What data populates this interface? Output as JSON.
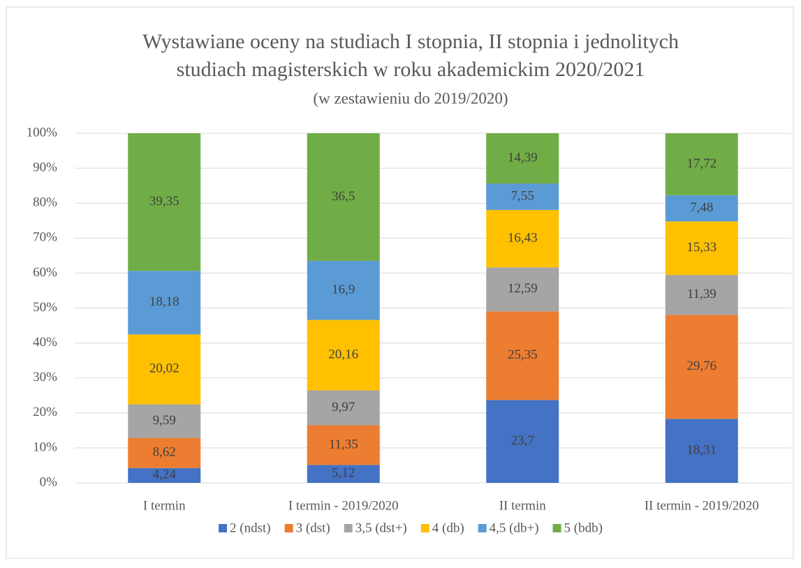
{
  "chart_data": {
    "type": "stacked_bar",
    "title": [
      "Wystawiane oceny na studiach I stopnia, II stopnia i jednolitych",
      "studiach magisterskich w roku akademickim 2020/2021"
    ],
    "subtitle": "(w zestawieniu do 2019/2020)",
    "categories": [
      "I termin",
      "I termin - 2019/2020",
      "II termin",
      "II termin - 2019/2020"
    ],
    "series": [
      {
        "name": "2 (ndst)",
        "color": "#4472c4",
        "values": [
          4.24,
          5.12,
          23.7,
          18.31
        ],
        "value_labels": [
          "4,24",
          "5,12",
          "23,7",
          "18,31"
        ]
      },
      {
        "name": "3 (dst)",
        "color": "#ed7d31",
        "values": [
          8.62,
          11.35,
          25.35,
          29.76
        ],
        "value_labels": [
          "8,62",
          "11,35",
          "25,35",
          "29,76"
        ]
      },
      {
        "name": "3,5 (dst+)",
        "color": "#a5a5a5",
        "values": [
          9.59,
          9.97,
          12.59,
          11.39
        ],
        "value_labels": [
          "9,59",
          "9,97",
          "12,59",
          "11,39"
        ]
      },
      {
        "name": "4 (db)",
        "color": "#ffc000",
        "values": [
          20.02,
          20.16,
          16.43,
          15.33
        ],
        "value_labels": [
          "20,02",
          "20,16",
          "16,43",
          "15,33"
        ]
      },
      {
        "name": "4,5 (db+)",
        "color": "#5b9bd5",
        "values": [
          18.18,
          16.9,
          7.55,
          7.48
        ],
        "value_labels": [
          "18,18",
          "16,9",
          "7,55",
          "7,48"
        ]
      },
      {
        "name": "5 (bdb)",
        "color": "#70ad47",
        "values": [
          39.35,
          36.5,
          14.39,
          17.72
        ],
        "value_labels": [
          "39,35",
          "36,5",
          "14,39",
          "17,72"
        ]
      }
    ],
    "ylim": [
      0,
      100
    ],
    "yticks": [
      {
        "value": 0,
        "label": "0%"
      },
      {
        "value": 10,
        "label": "10%"
      },
      {
        "value": 20,
        "label": "20%"
      },
      {
        "value": 30,
        "label": "30%"
      },
      {
        "value": 40,
        "label": "40%"
      },
      {
        "value": 50,
        "label": "50%"
      },
      {
        "value": 60,
        "label": "60%"
      },
      {
        "value": 70,
        "label": "70%"
      },
      {
        "value": 80,
        "label": "80%"
      },
      {
        "value": 90,
        "label": "90%"
      },
      {
        "value": 100,
        "label": "100%"
      }
    ],
    "grid": true,
    "legend": "bottom"
  }
}
